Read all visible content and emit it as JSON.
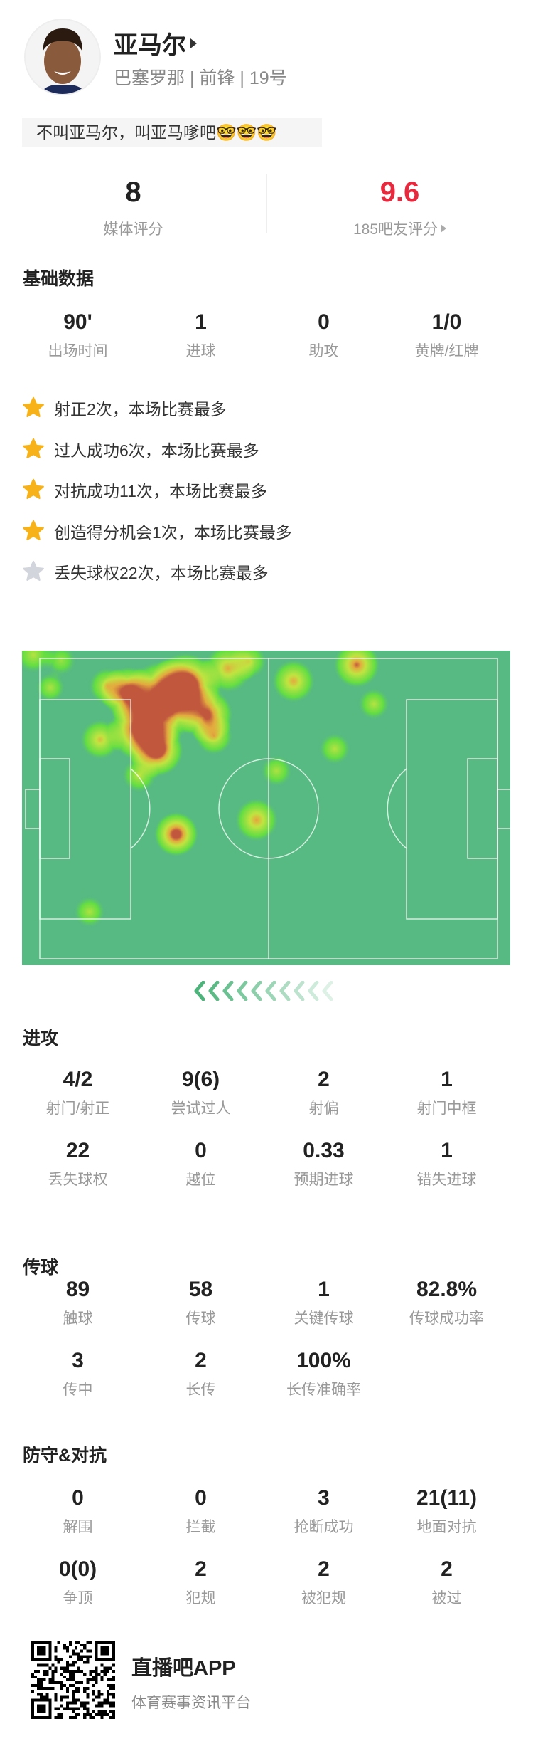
{
  "player": {
    "name": "亚马尔",
    "team": "巴塞罗那",
    "position": "前锋",
    "number": "19号",
    "separator": "|",
    "avatar_icon": "player-photo"
  },
  "comment": "不叫亚马尔，叫亚马嗲吧🤓🤓🤓",
  "ratings": {
    "media": {
      "value": "8",
      "label": "媒体评分"
    },
    "fans": {
      "value": "9.6",
      "label": "185吧友评分",
      "color": "#e8283c"
    }
  },
  "basic": {
    "title": "基础数据",
    "stats": [
      {
        "value": "90'",
        "label": "出场时间"
      },
      {
        "value": "1",
        "label": "进球"
      },
      {
        "value": "0",
        "label": "助攻"
      },
      {
        "value": "1/0",
        "label": "黄牌/红牌"
      }
    ]
  },
  "highlights": [
    {
      "text": "射正2次，本场比赛最多",
      "star": "gold"
    },
    {
      "text": "过人成功6次，本场比赛最多",
      "star": "gold"
    },
    {
      "text": "对抗成功11次，本场比赛最多",
      "star": "gold"
    },
    {
      "text": "创造得分机会1次，本场比赛最多",
      "star": "gold"
    },
    {
      "text": "丢失球权22次，本场比赛最多",
      "star": "silver"
    }
  ],
  "colors": {
    "gold_star": "#f7b21a",
    "silver_star": "#d3d5dc",
    "pitch": "#57ba83",
    "heat_max": "#c1583e"
  },
  "attack": {
    "title": "进攻",
    "stats": [
      {
        "value": "4/2",
        "label": "射门/射正"
      },
      {
        "value": "9(6)",
        "label": "尝试过人"
      },
      {
        "value": "2",
        "label": "射偏"
      },
      {
        "value": "1",
        "label": "射门中框"
      },
      {
        "value": "22",
        "label": "丢失球权"
      },
      {
        "value": "0",
        "label": "越位"
      },
      {
        "value": "0.33",
        "label": "预期进球"
      },
      {
        "value": "1",
        "label": "错失进球"
      }
    ]
  },
  "passing": {
    "title": "传球",
    "stats": [
      {
        "value": "89",
        "label": "触球"
      },
      {
        "value": "58",
        "label": "传球"
      },
      {
        "value": "1",
        "label": "关键传球"
      },
      {
        "value": "82.8%",
        "label": "传球成功率"
      },
      {
        "value": "3",
        "label": "传中"
      },
      {
        "value": "2",
        "label": "长传"
      },
      {
        "value": "100%",
        "label": "长传准确率"
      }
    ]
  },
  "defense": {
    "title": "防守&对抗",
    "stats": [
      {
        "value": "0",
        "label": "解围"
      },
      {
        "value": "0",
        "label": "拦截"
      },
      {
        "value": "3",
        "label": "抢断成功"
      },
      {
        "value": "21(11)",
        "label": "地面对抗"
      },
      {
        "value": "0(0)",
        "label": "争顶"
      },
      {
        "value": "2",
        "label": "犯规"
      },
      {
        "value": "2",
        "label": "被犯规"
      },
      {
        "value": "2",
        "label": "被过"
      }
    ]
  },
  "footer": {
    "app_name": "直播吧APP",
    "tagline": "体育赛事资讯平台",
    "qr_icon": "qr-code"
  }
}
